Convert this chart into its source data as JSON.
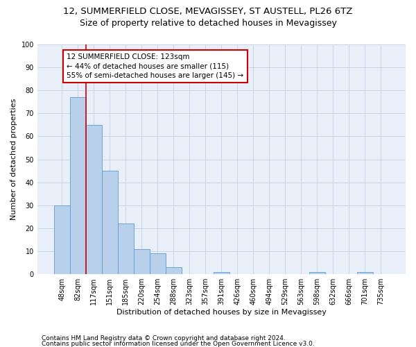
{
  "title_line1": "12, SUMMERFIELD CLOSE, MEVAGISSEY, ST AUSTELL, PL26 6TZ",
  "title_line2": "Size of property relative to detached houses in Mevagissey",
  "xlabel": "Distribution of detached houses by size in Mevagissey",
  "ylabel": "Number of detached properties",
  "categories": [
    "48sqm",
    "82sqm",
    "117sqm",
    "151sqm",
    "185sqm",
    "220sqm",
    "254sqm",
    "288sqm",
    "323sqm",
    "357sqm",
    "391sqm",
    "426sqm",
    "460sqm",
    "494sqm",
    "529sqm",
    "563sqm",
    "598sqm",
    "632sqm",
    "666sqm",
    "701sqm",
    "735sqm"
  ],
  "values": [
    30,
    77,
    65,
    45,
    22,
    11,
    9,
    3,
    0,
    0,
    1,
    0,
    0,
    0,
    0,
    0,
    1,
    0,
    0,
    1,
    0
  ],
  "bar_color": "#b8d0ea",
  "bar_edge_color": "#5b9bd5",
  "vline_color": "#cc0000",
  "annotation_box_text": "12 SUMMERFIELD CLOSE: 123sqm\n← 44% of detached houses are smaller (115)\n55% of semi-detached houses are larger (145) →",
  "box_color": "#cc0000",
  "ylim": [
    0,
    100
  ],
  "yticks": [
    0,
    10,
    20,
    30,
    40,
    50,
    60,
    70,
    80,
    90,
    100
  ],
  "footer_line1": "Contains HM Land Registry data © Crown copyright and database right 2024.",
  "footer_line2": "Contains public sector information licensed under the Open Government Licence v3.0.",
  "bg_color": "#ffffff",
  "plot_bg_color": "#e8eff8",
  "grid_color": "#c8d4e8",
  "title_fontsize": 9.5,
  "subtitle_fontsize": 9,
  "axis_label_fontsize": 8,
  "tick_fontsize": 7,
  "annotation_fontsize": 7.5,
  "footer_fontsize": 6.5
}
